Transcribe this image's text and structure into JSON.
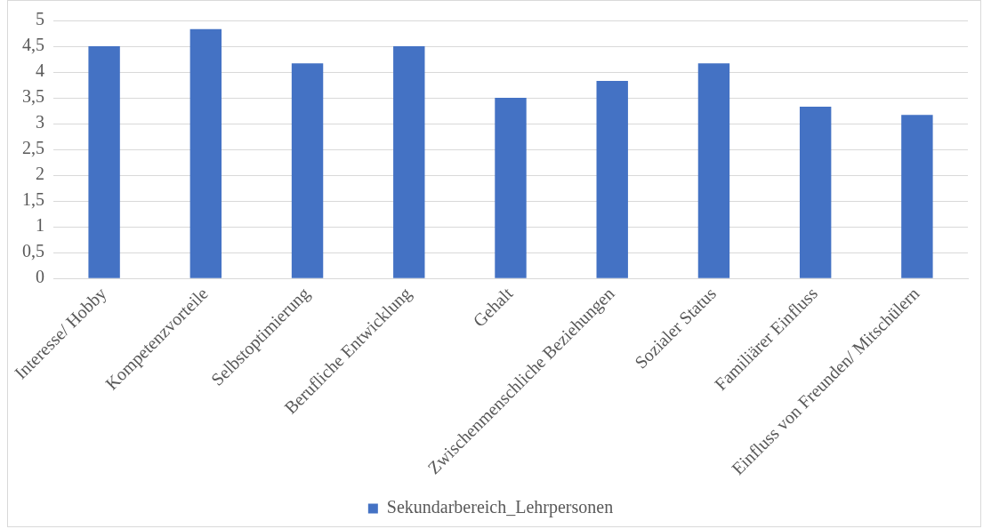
{
  "chart_data": {
    "type": "bar",
    "categories": [
      "Interesse/ Hobby",
      "Kompetenzvorteile",
      "Selbstoptimierung",
      "Berufliche Entwicklung",
      "Gehalt",
      "Zwischenmenschliche Beziehungen",
      "Sozialer Status",
      "Familiärer Einfluss",
      "Einfluss von Freunden/ Mitschülern"
    ],
    "series": [
      {
        "name": "Sekundarbereich_Lehrpersonen",
        "color": "#4472c4",
        "values": [
          4.5,
          4.83,
          4.17,
          4.5,
          3.5,
          3.83,
          4.17,
          3.33,
          3.17
        ]
      }
    ],
    "ylim": [
      0,
      5
    ],
    "yticks": [
      0,
      {
        "value": 0.5,
        "label": "0,5"
      },
      1,
      {
        "value": 1.5,
        "label": "1,5"
      },
      2,
      {
        "value": 2.5,
        "label": "2,5"
      },
      3,
      {
        "value": 3.5,
        "label": "3,5"
      },
      4,
      {
        "value": 4.5,
        "label": "4,5"
      },
      5
    ],
    "grid": "y",
    "legend": "bottom"
  }
}
